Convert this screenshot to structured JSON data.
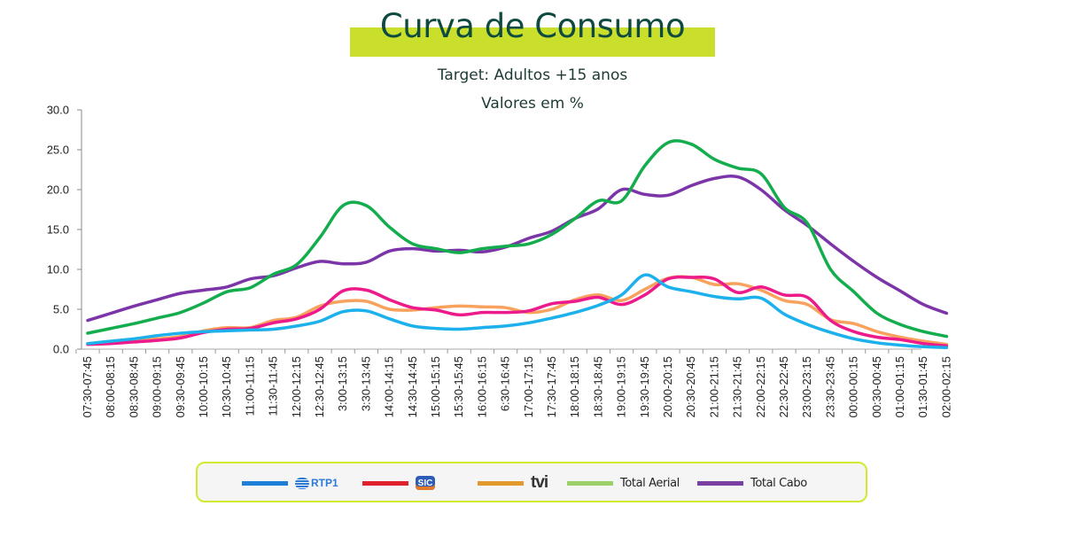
{
  "header": {
    "title": "Curva de Consumo",
    "subtitle": "Target: Adultos +15 anos",
    "units": "Valores em %"
  },
  "legend": {
    "items": [
      {
        "label": "RTP1",
        "color": "#1e7fd8",
        "icon": "rtp1-logo"
      },
      {
        "label": "SIC",
        "color": "#e0202a",
        "icon": "sic-logo"
      },
      {
        "label": "tvi",
        "color": "#e39a2c",
        "icon": "tvi-logo"
      },
      {
        "label": "Total Aerial",
        "color": "#9cd16a"
      },
      {
        "label": "Total Cabo",
        "color": "#7a3fa0"
      }
    ]
  },
  "chart_data": {
    "type": "line",
    "title": "Curva de Consumo",
    "subtitle": "Target: Adultos +15 anos",
    "ylabel": "Valores em %",
    "xlabel": "",
    "ylim": [
      0,
      30
    ],
    "yticks": [
      "0.0",
      "5.0",
      "10.0",
      "15.0",
      "20.0",
      "25.0",
      "30.0"
    ],
    "grid": false,
    "legend_position": "bottom",
    "categories": [
      "07:30-07:45",
      "08:00-08:15",
      "08:30-08:45",
      "09:00-09:15",
      "09:30-09:45",
      "10:00-10:15",
      "10:30-10:45",
      "11:00-11:15",
      "11:30-11:45",
      "12:00-12:15",
      "12:30-12:45",
      "3:00-13:15",
      "3:30-13:45",
      "14:00-14:15",
      "14:30-14:45",
      "15:00-15:15",
      "15:30-15:45",
      "16:00-16:15",
      "6:30-16:45",
      "17:00-17:15",
      "17:30-17:45",
      "18:00-18:15",
      "18:30-18:45",
      "19:00-19:15",
      "19:30-19:45",
      "20:00-20:15",
      "20:30-20:45",
      "21:00-21:15",
      "21:30-21:45",
      "22:00-22:15",
      "22:30-22:45",
      "23:00-23:15",
      "23:30-23:45",
      "00:00-00:15",
      "00:30-00:45",
      "01:00-01:15",
      "01:30-01:45",
      "02:00-02:15"
    ],
    "series": [
      {
        "name": "RTP1",
        "color": "#1cb0ec",
        "values": [
          0.7,
          1.0,
          1.3,
          1.7,
          2.0,
          2.2,
          2.3,
          2.4,
          2.5,
          2.9,
          3.5,
          4.7,
          4.8,
          3.8,
          2.9,
          2.6,
          2.5,
          2.7,
          2.9,
          3.3,
          3.9,
          4.6,
          5.5,
          6.8,
          9.3,
          7.8,
          7.2,
          6.6,
          6.3,
          6.4,
          4.4,
          3.1,
          2.1,
          1.3,
          0.8,
          0.5,
          0.3,
          0.2
        ]
      },
      {
        "name": "SIC",
        "color": "#ec1a8a",
        "values": [
          0.6,
          0.7,
          0.9,
          1.1,
          1.4,
          2.1,
          2.5,
          2.6,
          3.3,
          3.8,
          5.0,
          7.3,
          7.4,
          6.2,
          5.2,
          4.9,
          4.3,
          4.6,
          4.6,
          4.8,
          5.7,
          6.0,
          6.5,
          5.6,
          6.8,
          8.8,
          9.0,
          8.8,
          7.1,
          7.8,
          6.8,
          6.5,
          3.6,
          2.2,
          1.5,
          1.2,
          0.7,
          0.4
        ]
      },
      {
        "name": "tvi",
        "color": "#f8a25e",
        "values": [
          0.6,
          0.9,
          1.1,
          1.3,
          1.6,
          2.3,
          2.7,
          2.7,
          3.6,
          4.0,
          5.4,
          6.0,
          6.0,
          5.0,
          4.9,
          5.2,
          5.4,
          5.3,
          5.2,
          4.6,
          5.0,
          6.2,
          6.8,
          6.1,
          7.5,
          8.9,
          9.0,
          8.1,
          8.2,
          7.4,
          6.1,
          5.6,
          3.7,
          3.2,
          2.2,
          1.5,
          1.0,
          0.6
        ]
      },
      {
        "name": "Total Aerial",
        "color": "#13ad4d",
        "values": [
          2.0,
          2.6,
          3.2,
          3.9,
          4.6,
          5.8,
          7.2,
          7.7,
          9.4,
          10.6,
          14.0,
          18.0,
          18.0,
          15.3,
          13.2,
          12.6,
          12.1,
          12.6,
          12.9,
          13.2,
          14.4,
          16.4,
          18.6,
          18.6,
          23.0,
          25.9,
          25.7,
          23.8,
          22.7,
          22.0,
          17.8,
          15.8,
          10.0,
          7.2,
          4.5,
          3.1,
          2.2,
          1.6
        ]
      },
      {
        "name": "Total Cabo",
        "color": "#7c35a8",
        "values": [
          3.6,
          4.5,
          5.4,
          6.2,
          7.0,
          7.4,
          7.8,
          8.8,
          9.2,
          10.2,
          11.0,
          10.7,
          10.9,
          12.3,
          12.6,
          12.3,
          12.4,
          12.2,
          12.8,
          13.9,
          14.8,
          16.4,
          17.6,
          20.0,
          19.4,
          19.3,
          20.5,
          21.4,
          21.6,
          20.0,
          17.5,
          15.5,
          13.2,
          11.0,
          9.0,
          7.3,
          5.6,
          4.5
        ]
      }
    ]
  }
}
